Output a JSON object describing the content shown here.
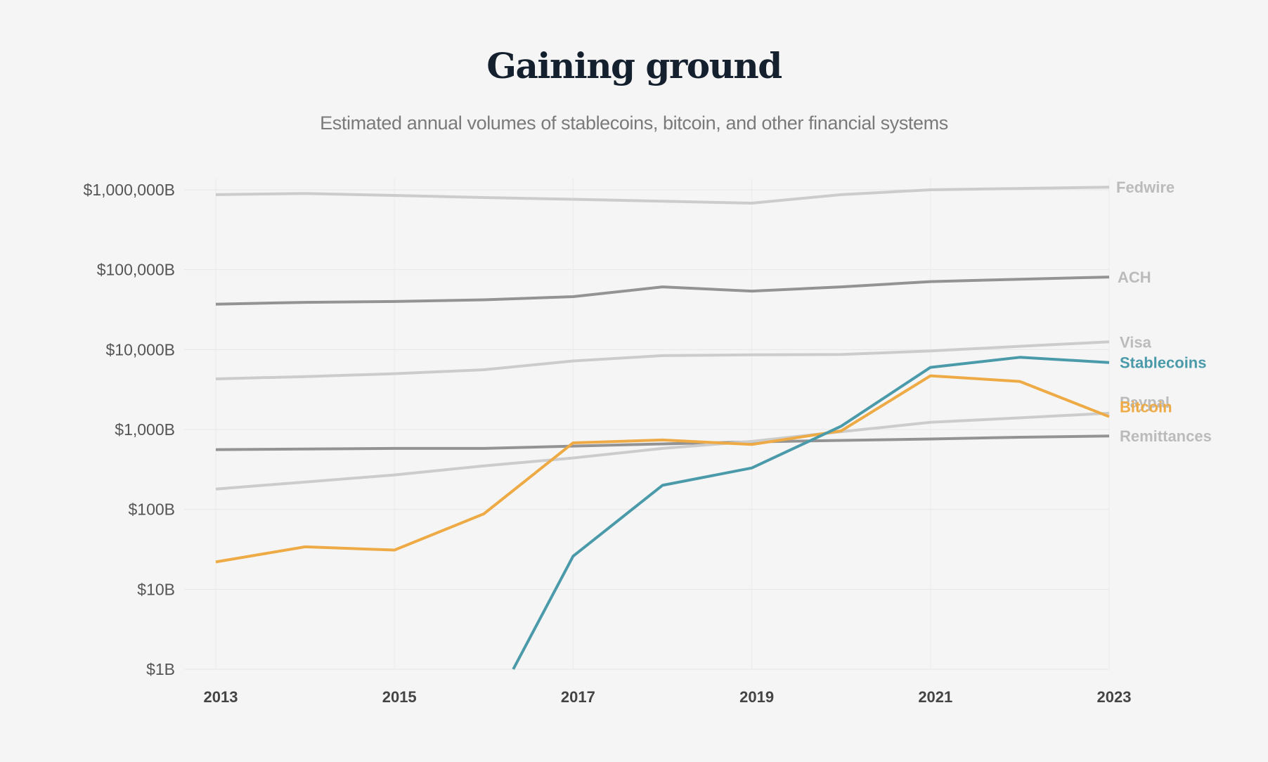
{
  "chart_data": {
    "type": "line",
    "title": "Gaining ground",
    "subtitle": "Estimated annual volumes of stablecoins, bitcoin, and other financial systems",
    "xlabel": "",
    "ylabel": "",
    "y_scale": "log",
    "ylim": [
      1,
      1000000
    ],
    "y_ticks": [
      1,
      10,
      100,
      1000,
      10000,
      100000,
      1000000
    ],
    "y_tick_labels": [
      "$1B",
      "$10B",
      "$100B",
      "$1,000B",
      "$10,000B",
      "$100,000B",
      "$1,000,000B"
    ],
    "xlim": [
      2013,
      2023
    ],
    "x_ticks": [
      2013,
      2015,
      2017,
      2019,
      2021,
      2023
    ],
    "x_tick_labels": [
      "2013",
      "2015",
      "2017",
      "2019",
      "2021",
      "2023"
    ],
    "grid": true,
    "legend": "direct labels at right end of lines",
    "series": [
      {
        "name": "Fedwire",
        "color": "#cccccc",
        "label_color": "#bbbbbb",
        "points": [
          [
            2013,
            870000
          ],
          [
            2014,
            900000
          ],
          [
            2015,
            850000
          ],
          [
            2016,
            800000
          ],
          [
            2017,
            760000
          ],
          [
            2018,
            720000
          ],
          [
            2019,
            680000
          ],
          [
            2020,
            870000
          ],
          [
            2021,
            1000000
          ],
          [
            2022,
            1040000
          ],
          [
            2023,
            1080000
          ]
        ]
      },
      {
        "name": "ACH",
        "color": "#939393",
        "label_color": "#bbbbbb",
        "points": [
          [
            2013,
            37000
          ],
          [
            2014,
            39000
          ],
          [
            2015,
            40000
          ],
          [
            2016,
            42000
          ],
          [
            2017,
            46000
          ],
          [
            2018,
            61000
          ],
          [
            2019,
            54000
          ],
          [
            2020,
            61000
          ],
          [
            2021,
            71000
          ],
          [
            2022,
            76000
          ],
          [
            2023,
            81000
          ]
        ]
      },
      {
        "name": "Visa",
        "color": "#cccccc",
        "label_color": "#bbbbbb",
        "points": [
          [
            2013,
            4300
          ],
          [
            2014,
            4600
          ],
          [
            2015,
            5000
          ],
          [
            2016,
            5600
          ],
          [
            2017,
            7200
          ],
          [
            2018,
            8400
          ],
          [
            2019,
            8600
          ],
          [
            2020,
            8700
          ],
          [
            2021,
            9600
          ],
          [
            2022,
            11000
          ],
          [
            2023,
            12500
          ]
        ]
      },
      {
        "name": "Stablecoins",
        "color": "#4a9aaa",
        "label_color": "#4a9aaa",
        "points": [
          [
            2016.33,
            1
          ],
          [
            2017,
            26
          ],
          [
            2018,
            200
          ],
          [
            2019,
            330
          ],
          [
            2020,
            1100
          ],
          [
            2021,
            6000
          ],
          [
            2022,
            8000
          ],
          [
            2023,
            6900
          ]
        ]
      },
      {
        "name": "Paypal",
        "color": "#cccccc",
        "label_color": "#bbbbbb",
        "points": [
          [
            2013,
            180
          ],
          [
            2014,
            220
          ],
          [
            2015,
            270
          ],
          [
            2016,
            350
          ],
          [
            2017,
            440
          ],
          [
            2018,
            580
          ],
          [
            2019,
            710
          ],
          [
            2020,
            940
          ],
          [
            2021,
            1230
          ],
          [
            2022,
            1400
          ],
          [
            2023,
            1600
          ]
        ]
      },
      {
        "name": "Bitcoin",
        "color": "#eeaa44",
        "label_color": "#eeaa44",
        "points": [
          [
            2013,
            22
          ],
          [
            2014,
            34
          ],
          [
            2015,
            31
          ],
          [
            2016,
            88
          ],
          [
            2017,
            680
          ],
          [
            2018,
            740
          ],
          [
            2019,
            650
          ],
          [
            2020,
            960
          ],
          [
            2021,
            4700
          ],
          [
            2022,
            4000
          ],
          [
            2023,
            1450
          ]
        ]
      },
      {
        "name": "Remittances",
        "color": "#939393",
        "label_color": "#bbbbbb",
        "points": [
          [
            2013,
            560
          ],
          [
            2014,
            570
          ],
          [
            2015,
            580
          ],
          [
            2016,
            580
          ],
          [
            2017,
            620
          ],
          [
            2018,
            660
          ],
          [
            2019,
            700
          ],
          [
            2020,
            730
          ],
          [
            2021,
            760
          ],
          [
            2022,
            800
          ],
          [
            2023,
            830
          ]
        ]
      }
    ]
  }
}
